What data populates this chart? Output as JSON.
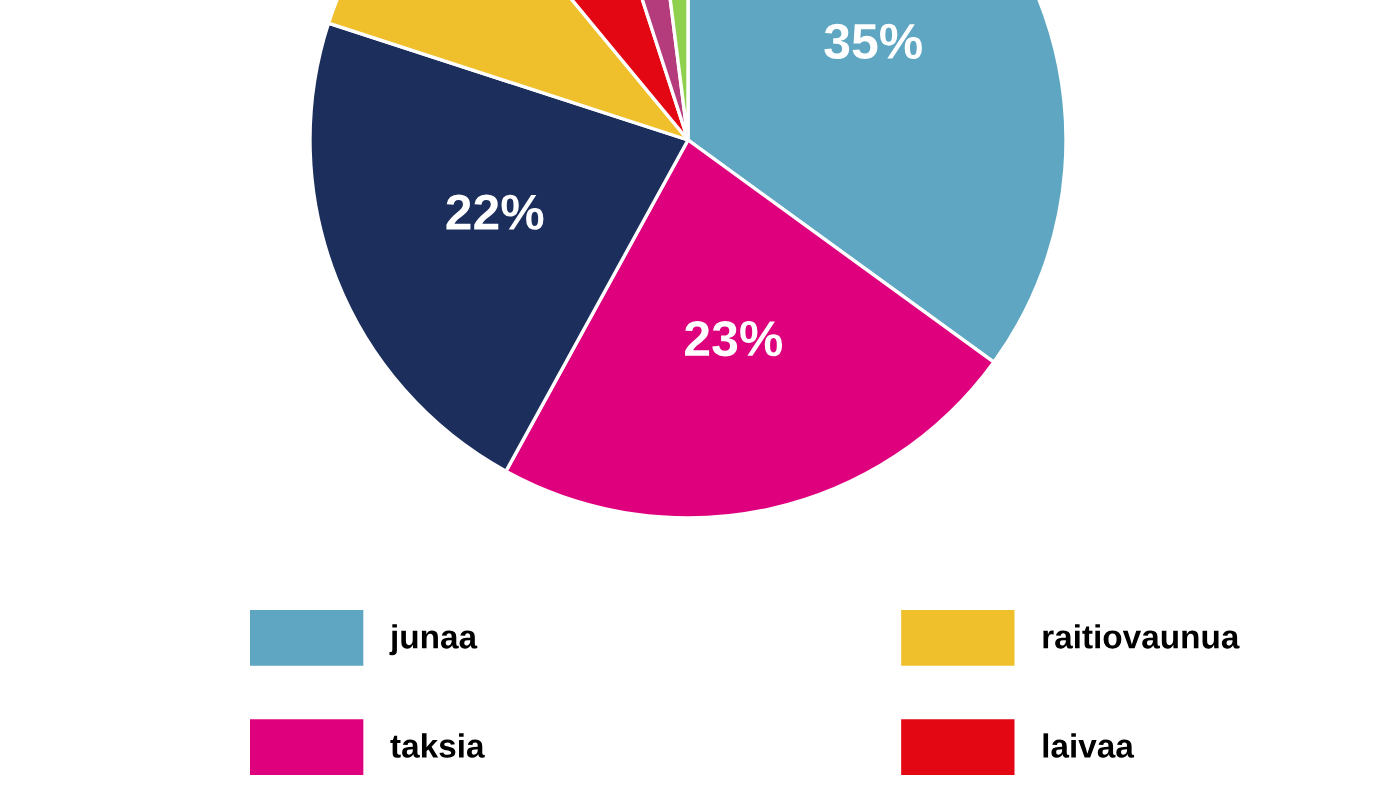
{
  "chart_data": {
    "type": "pie",
    "categories": [
      "junaa",
      "taksia",
      null,
      "raitiovaunua",
      "laivaa",
      null,
      null
    ],
    "values": [
      35,
      23,
      22,
      9,
      6,
      3,
      2
    ],
    "colors": [
      "#5ea6c2",
      "#df007e",
      "#1b2e5c",
      "#f0c02c",
      "#e30613",
      "#b43c7c",
      "#8fd14f"
    ],
    "value_labels": [
      "35%",
      "23%",
      "22%",
      null,
      null,
      null,
      null
    ],
    "legend": "bottom"
  }
}
